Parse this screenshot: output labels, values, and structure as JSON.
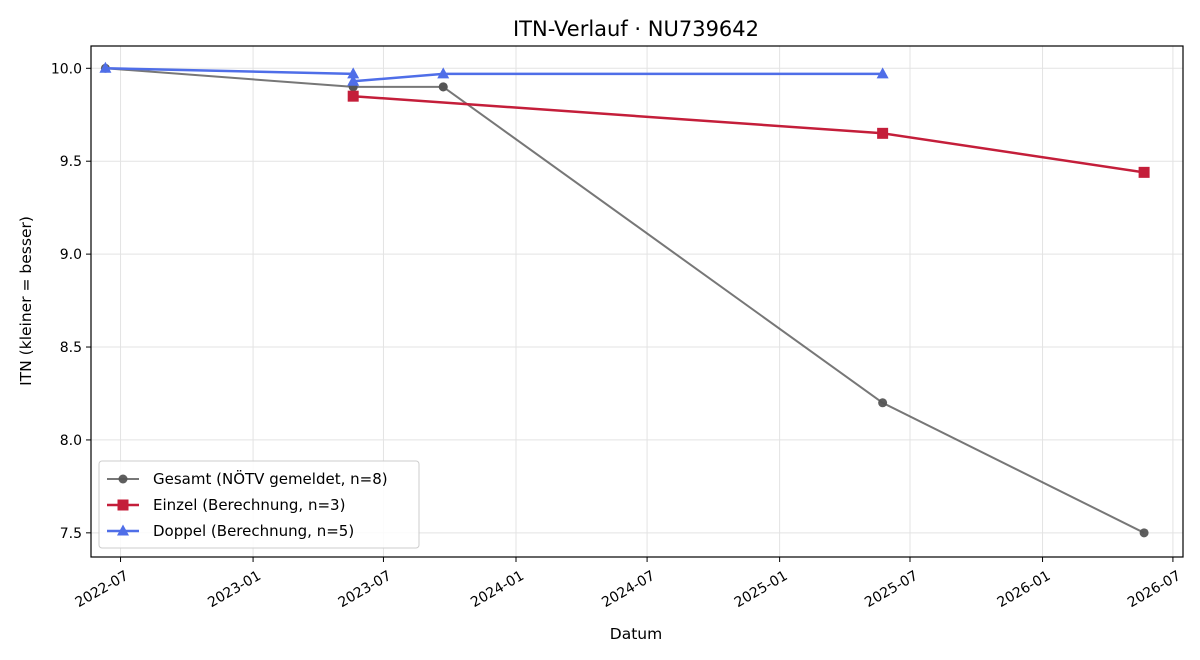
{
  "chart_data": {
    "type": "line",
    "title": "ITN-Verlauf · NU739642",
    "xlabel": "Datum",
    "ylabel": "ITN  (kleiner = besser)",
    "xlim": [
      "2022-05-21",
      "2026-07-15"
    ],
    "ylim": [
      7.37,
      10.12
    ],
    "x_ticks": [
      "2022-07",
      "2023-01",
      "2023-07",
      "2024-01",
      "2024-07",
      "2025-01",
      "2025-07",
      "2026-01",
      "2026-07"
    ],
    "y_ticks": [
      "7.5",
      "8.0",
      "8.5",
      "9.0",
      "9.5",
      "10.0"
    ],
    "grid": true,
    "legend_position": "lower-left",
    "series": [
      {
        "name": "Gesamt (NÖTV gemeldet, n=8)",
        "color": "#555555",
        "marker": "circle",
        "x": [
          "2022-06-10",
          "2023-05-20",
          "2023-05-20",
          "2023-09-22",
          "2023-09-22",
          "2025-05-24",
          "2026-05-22"
        ],
        "values": [
          10.0,
          9.9,
          9.9,
          9.9,
          9.9,
          8.2,
          7.5
        ]
      },
      {
        "name": "Einzel (Berechnung, n=3)",
        "color": "#c41e3a",
        "marker": "square",
        "x": [
          "2023-05-20",
          "2025-05-24",
          "2026-05-22"
        ],
        "values": [
          9.85,
          9.65,
          9.44
        ]
      },
      {
        "name": "Doppel (Berechnung, n=5)",
        "color": "#4f6ee8",
        "marker": "triangle",
        "x": [
          "2022-06-10",
          "2023-05-20",
          "2023-05-20",
          "2023-09-22",
          "2025-05-24"
        ],
        "values": [
          10.0,
          9.97,
          9.93,
          9.97,
          9.97
        ]
      }
    ]
  }
}
